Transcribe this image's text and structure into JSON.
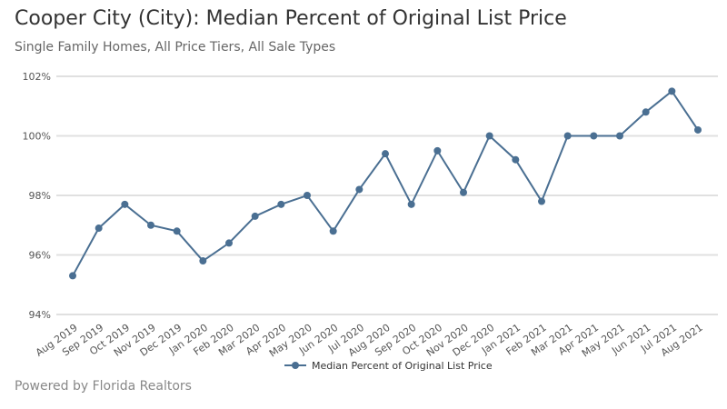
{
  "header": {
    "title": "Cooper City (City): Median Percent of Original List Price",
    "subtitle": "Single Family Homes, All Price Tiers, All Sale Types"
  },
  "footer": {
    "text": "Powered by Florida Realtors"
  },
  "chart_data": {
    "type": "line",
    "title": "Cooper City (City): Median Percent of Original List Price",
    "subtitle": "Single Family Homes, All Price Tiers, All Sale Types",
    "categories": [
      "Aug 2019",
      "Sep 2019",
      "Oct 2019",
      "Nov 2019",
      "Dec 2019",
      "Jan 2020",
      "Feb 2020",
      "Mar 2020",
      "Apr 2020",
      "May 2020",
      "Jun 2020",
      "Jul 2020",
      "Aug 2020",
      "Sep 2020",
      "Oct 2020",
      "Nov 2020",
      "Dec 2020",
      "Jan 2021",
      "Feb 2021",
      "Mar 2021",
      "Apr 2021",
      "May 2021",
      "Jun 2021",
      "Jul 2021",
      "Aug 2021"
    ],
    "series": [
      {
        "name": "Median Percent of Original List Price",
        "color": "#4a6f92",
        "values": [
          95.3,
          96.9,
          97.7,
          97.0,
          96.8,
          95.8,
          96.4,
          97.3,
          97.7,
          98.0,
          96.8,
          98.2,
          99.4,
          97.7,
          99.5,
          98.1,
          100.0,
          99.2,
          97.8,
          100.0,
          100.0,
          100.0,
          100.8,
          101.5,
          100.2
        ]
      }
    ],
    "yticks": [
      94,
      96,
      98,
      100,
      102
    ],
    "ytick_labels": [
      "94%",
      "96%",
      "98%",
      "100%",
      "102%"
    ],
    "ylim": [
      94,
      102
    ],
    "grid": true,
    "legend": "bottom"
  }
}
